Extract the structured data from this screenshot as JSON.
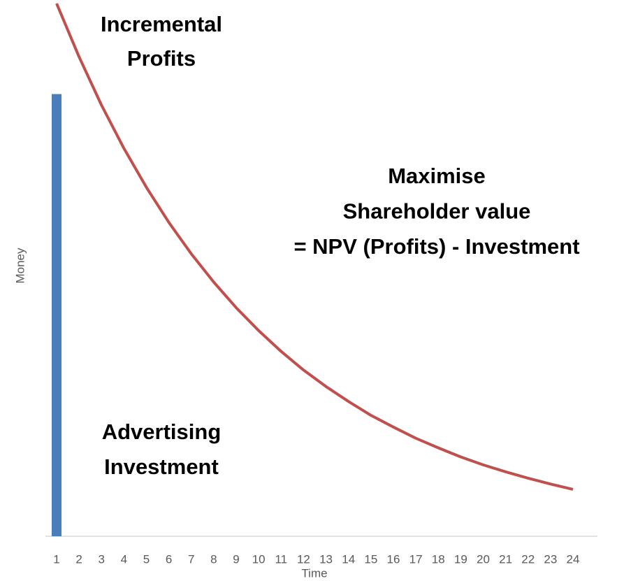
{
  "chart_data": {
    "type": "bar-line",
    "categories": [
      "1",
      "2",
      "3",
      "4",
      "5",
      "6",
      "7",
      "8",
      "9",
      "10",
      "11",
      "12",
      "13",
      "14",
      "15",
      "16",
      "17",
      "18",
      "19",
      "20",
      "21",
      "22",
      "23",
      "24"
    ],
    "series": [
      {
        "name": "Advertising Investment",
        "type": "bar",
        "color": "#4a7ebb",
        "values": [
          83,
          null,
          null,
          null,
          null,
          null,
          null,
          null,
          null,
          null,
          null,
          null,
          null,
          null,
          null,
          null,
          null,
          null,
          null,
          null,
          null,
          null,
          null,
          null
        ]
      },
      {
        "name": "Incremental Profits",
        "type": "line",
        "color": "#c0504d",
        "values": [
          100,
          90.0,
          80.9,
          72.8,
          65.5,
          58.9,
          53.0,
          47.7,
          42.9,
          38.6,
          34.7,
          31.2,
          28.1,
          25.3,
          22.7,
          20.5,
          18.4,
          16.6,
          14.9,
          13.4,
          12.1,
          10.9,
          9.8,
          8.8
        ]
      }
    ],
    "ylim": [
      0,
      100
    ],
    "x_label": "Time",
    "y_label": "Money",
    "annotations": [
      {
        "lines": [
          "Incremental",
          "Profits"
        ]
      },
      {
        "lines": [
          "Maximise",
          "Shareholder value",
          "= NPV (Profits) - Investment"
        ]
      },
      {
        "lines": [
          "Advertising",
          "Investment"
        ]
      }
    ]
  }
}
